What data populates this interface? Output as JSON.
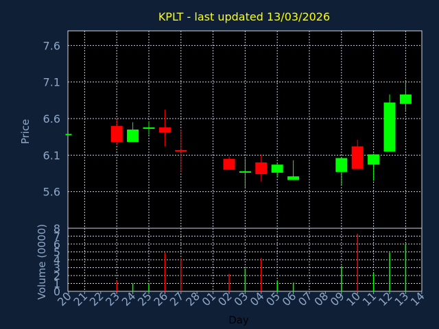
{
  "chart_data": [
    {
      "type": "candlestick",
      "title": "KPLT - last updated 13/03/2026",
      "ylabel": "Price",
      "ylim": [
        5.1,
        7.8
      ],
      "yticks": [
        "5.6",
        "6.1",
        "6.6",
        "7.1",
        "7.6"
      ],
      "grid": true,
      "colors": {
        "up": "#00ff00",
        "down": "#ff0000",
        "background": "#0f2036",
        "plot": "#000000",
        "title": "#ffff00",
        "axis_text": "#8fa8c8"
      },
      "candles": [
        {
          "x": "20",
          "open": 6.39,
          "high": 6.39,
          "low": 6.39,
          "close": 6.39
        },
        {
          "x": "23",
          "open": 6.5,
          "high": 6.59,
          "low": 6.24,
          "close": 6.28
        },
        {
          "x": "24",
          "open": 6.28,
          "high": 6.55,
          "low": 6.28,
          "close": 6.45
        },
        {
          "x": "25",
          "open": 6.46,
          "high": 6.56,
          "low": 6.38,
          "close": 6.48
        },
        {
          "x": "26",
          "open": 6.48,
          "high": 6.72,
          "low": 6.22,
          "close": 6.41
        },
        {
          "x": "27",
          "open": 6.17,
          "high": 6.45,
          "low": 5.87,
          "close": 6.15
        },
        {
          "x": "02",
          "open": 6.05,
          "high": 6.08,
          "low": 5.9,
          "close": 5.9
        },
        {
          "x": "03",
          "open": 5.86,
          "high": 6.05,
          "low": 5.65,
          "close": 5.88
        },
        {
          "x": "04",
          "open": 6.0,
          "high": 6.11,
          "low": 5.74,
          "close": 5.84
        },
        {
          "x": "05",
          "open": 5.86,
          "high": 5.98,
          "low": 5.81,
          "close": 5.97
        },
        {
          "x": "06",
          "open": 5.76,
          "high": 6.03,
          "low": 5.76,
          "close": 5.81
        },
        {
          "x": "09",
          "open": 5.87,
          "high": 6.04,
          "low": 5.7,
          "close": 6.06
        },
        {
          "x": "10",
          "open": 6.22,
          "high": 6.31,
          "low": 5.92,
          "close": 5.91
        },
        {
          "x": "11",
          "open": 5.97,
          "high": 6.12,
          "low": 5.75,
          "close": 6.11
        },
        {
          "x": "12",
          "open": 6.15,
          "high": 6.93,
          "low": 6.15,
          "close": 6.82
        },
        {
          "x": "13",
          "open": 6.8,
          "high": 7.1,
          "low": 6.7,
          "close": 6.93
        }
      ]
    },
    {
      "type": "bar",
      "ylabel": "Volume (0000)",
      "xlabel": "Day",
      "ylim": [
        0,
        8
      ],
      "yticks": [
        "0",
        "1",
        "2",
        "3",
        "4",
        "5",
        "6",
        "7",
        "8"
      ],
      "categories": [
        "20",
        "21",
        "22",
        "23",
        "24",
        "25",
        "26",
        "27",
        "28",
        "01",
        "02",
        "03",
        "04",
        "05",
        "06",
        "07",
        "08",
        "09",
        "10",
        "11",
        "12",
        "13",
        "14"
      ],
      "bars": [
        {
          "x": "23",
          "value": 1.3,
          "dir": "down"
        },
        {
          "x": "24",
          "value": 1.0,
          "dir": "up"
        },
        {
          "x": "25",
          "value": 1.0,
          "dir": "up"
        },
        {
          "x": "26",
          "value": 4.9,
          "dir": "down"
        },
        {
          "x": "27",
          "value": 4.2,
          "dir": "down"
        },
        {
          "x": "02",
          "value": 2.2,
          "dir": "down"
        },
        {
          "x": "03",
          "value": 2.9,
          "dir": "up"
        },
        {
          "x": "04",
          "value": 4.2,
          "dir": "down"
        },
        {
          "x": "05",
          "value": 1.3,
          "dir": "up"
        },
        {
          "x": "06",
          "value": 1.1,
          "dir": "up"
        },
        {
          "x": "09",
          "value": 3.2,
          "dir": "up"
        },
        {
          "x": "10",
          "value": 7.3,
          "dir": "down"
        },
        {
          "x": "11",
          "value": 2.3,
          "dir": "up"
        },
        {
          "x": "12",
          "value": 4.9,
          "dir": "up"
        },
        {
          "x": "13",
          "value": 6.0,
          "dir": "up"
        }
      ]
    }
  ]
}
